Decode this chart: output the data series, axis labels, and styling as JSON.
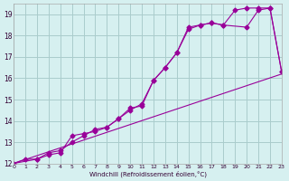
{
  "xlabel": "Windchill (Refroidissement éolien,°C)",
  "bg_color": "#d6f0f0",
  "grid_color": "#aacccc",
  "line_color": "#990099",
  "xlim": [
    0,
    23
  ],
  "ylim": [
    12,
    19.5
  ],
  "xticks": [
    0,
    1,
    2,
    3,
    4,
    5,
    6,
    7,
    8,
    9,
    10,
    11,
    12,
    13,
    14,
    15,
    16,
    17,
    18,
    19,
    20,
    21,
    22,
    23
  ],
  "yticks": [
    12,
    13,
    14,
    15,
    16,
    17,
    18,
    19
  ],
  "line1": {
    "x": [
      0,
      1,
      2,
      3,
      4,
      5,
      6,
      7,
      8,
      9,
      10,
      11,
      12,
      13,
      14,
      15,
      16,
      17,
      18,
      19,
      20,
      21,
      22,
      23
    ],
    "y": [
      12.0,
      12.2,
      12.2,
      12.5,
      12.6,
      13.0,
      13.3,
      13.6,
      13.7,
      14.1,
      14.5,
      14.8,
      15.9,
      16.5,
      17.2,
      18.4,
      18.5,
      18.6,
      18.5,
      19.2,
      19.3,
      19.3,
      19.3,
      16.3
    ]
  },
  "line2": {
    "x": [
      0,
      2,
      3,
      4,
      5,
      6,
      7,
      8,
      9,
      10,
      11,
      12,
      13,
      14,
      15,
      16,
      17,
      18,
      20,
      21,
      22,
      23
    ],
    "y": [
      12.0,
      12.2,
      12.4,
      12.5,
      13.3,
      13.4,
      13.5,
      13.7,
      14.1,
      14.6,
      14.7,
      15.9,
      16.5,
      17.2,
      18.3,
      18.5,
      18.6,
      18.5,
      18.4,
      19.2,
      19.3,
      16.3
    ]
  },
  "line3": {
    "x": [
      0,
      23
    ],
    "y": [
      12.0,
      16.2
    ]
  }
}
